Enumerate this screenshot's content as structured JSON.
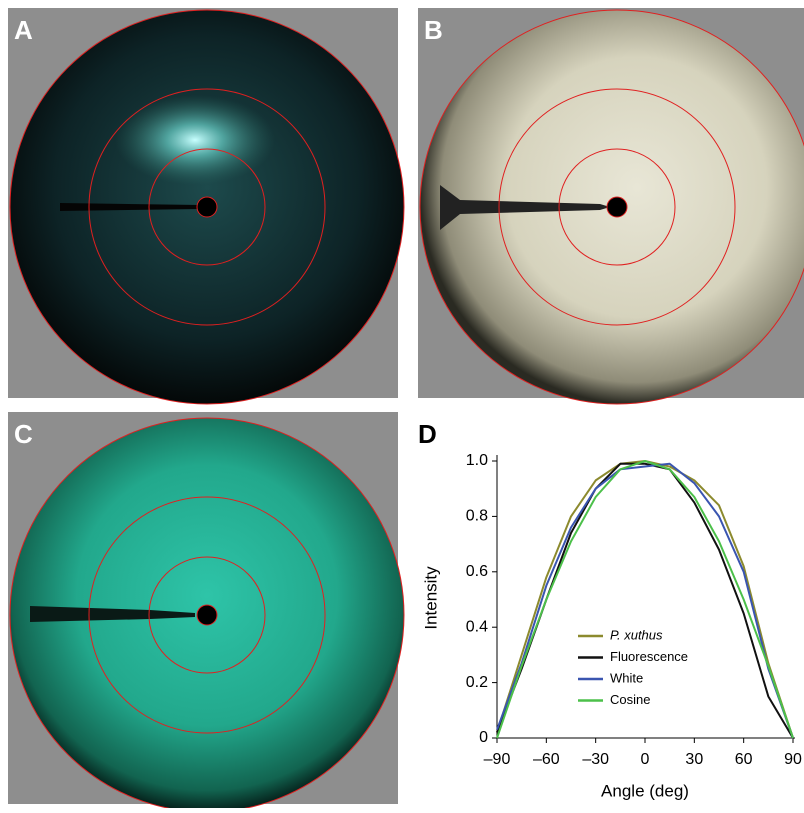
{
  "panel_labels": [
    "A",
    "B",
    "C",
    "D"
  ],
  "chart_data": {
    "type": "line",
    "x": [
      -90,
      -75,
      -60,
      -45,
      -30,
      -15,
      0,
      15,
      30,
      45,
      60,
      75,
      90
    ],
    "series": [
      {
        "name": "P. xuthus",
        "color": "#8c8a2e",
        "values": [
          0.02,
          0.3,
          0.58,
          0.8,
          0.93,
          0.99,
          1,
          0.98,
          0.93,
          0.84,
          0.62,
          0.27,
          0
        ]
      },
      {
        "name": "Fluorescence",
        "color": "#111111",
        "values": [
          0.02,
          0.25,
          0.5,
          0.74,
          0.9,
          0.99,
          0.99,
          0.97,
          0.85,
          0.68,
          0.45,
          0.15,
          0
        ]
      },
      {
        "name": "White",
        "color": "#3a55b0",
        "values": [
          0.03,
          0.27,
          0.55,
          0.76,
          0.9,
          0.97,
          0.98,
          0.99,
          0.92,
          0.8,
          0.6,
          0.25,
          0
        ]
      },
      {
        "name": "Cosine",
        "color": "#4cc04a",
        "values": [
          0,
          0.26,
          0.5,
          0.71,
          0.87,
          0.97,
          1,
          0.97,
          0.87,
          0.71,
          0.5,
          0.26,
          0
        ]
      }
    ],
    "xlabel": "Angle (deg)",
    "ylabel": "Intensity",
    "xlim": [
      -90,
      90
    ],
    "ylim": [
      0,
      1
    ],
    "xticks": [
      {
        "value": -90,
        "label": "–90"
      },
      {
        "value": -60,
        "label": "–60"
      },
      {
        "value": -30,
        "label": "–30"
      },
      0,
      30,
      60,
      90
    ],
    "yticks": [
      0,
      0.2,
      0.4,
      0.6,
      0.8,
      {
        "value": 1,
        "label": "1.0"
      }
    ]
  }
}
